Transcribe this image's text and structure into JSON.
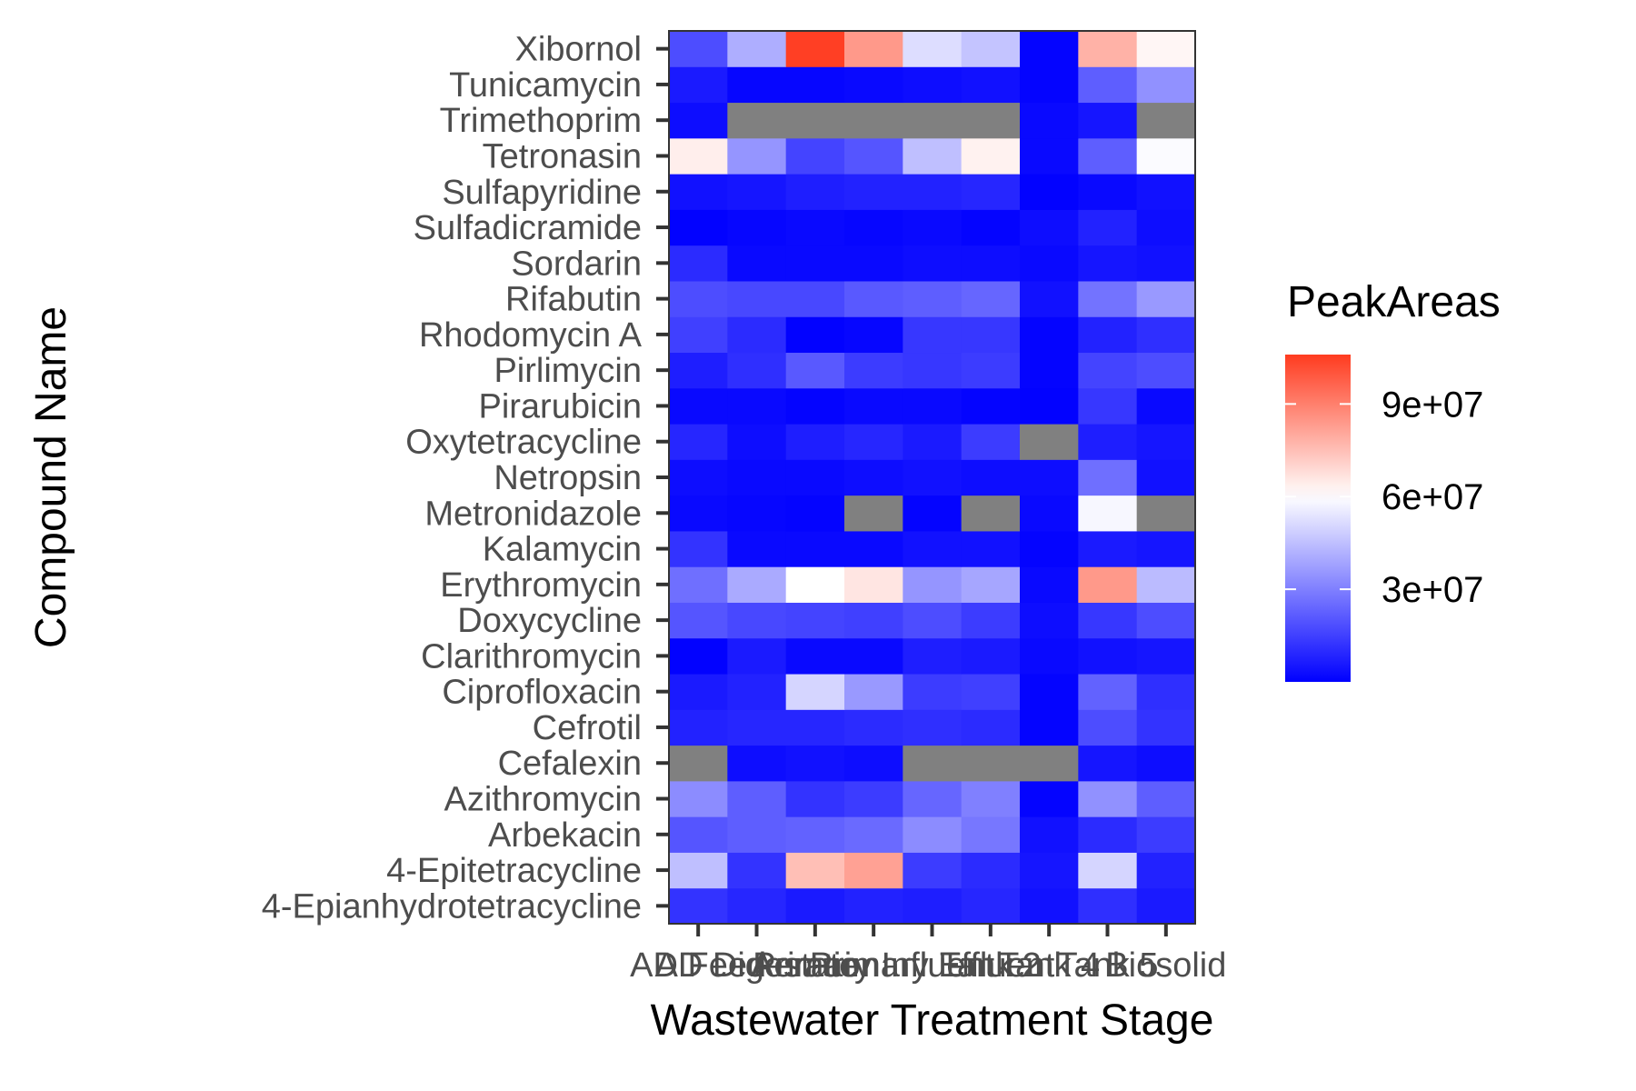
{
  "chart_data": {
    "type": "heatmap",
    "xlabel": "Wastewater Treatment Stage",
    "ylabel": "Compound Name",
    "x_categories": [
      "AD Feed",
      "AD Digestate",
      "Aeration",
      "Primary Influent",
      "Primary Effluent",
      "Tank 2",
      "Tank 4",
      "Tank 5",
      "Biosolid"
    ],
    "y_categories": [
      "4-Epianhydrotetracycline",
      "4-Epitetracycline",
      "Arbekacin",
      "Azithromycin",
      "Cefalexin",
      "Cefrotil",
      "Ciprofloxacin",
      "Clarithromycin",
      "Doxycycline",
      "Erythromycin",
      "Kalamycin",
      "Metronidazole",
      "Netropsin",
      "Oxytetracycline",
      "Pirarubicin",
      "Pirlimycin",
      "Rhodomycin A",
      "Rifabutin",
      "Sordarin",
      "Sulfadicramide",
      "Sulfapyridine",
      "Tetronasin",
      "Trimethoprim",
      "Tunicamycin",
      "Xibornol"
    ],
    "values": [
      [
        12000000,
        9000000,
        6000000,
        8000000,
        7000000,
        9000000,
        4000000,
        11000000,
        6000000
      ],
      [
        45000000,
        12000000,
        75000000,
        82000000,
        14000000,
        10000000,
        5000000,
        50000000,
        8000000
      ],
      [
        20000000,
        22000000,
        23000000,
        25000000,
        33000000,
        28000000,
        4000000,
        10000000,
        14000000
      ],
      [
        33000000,
        22000000,
        12000000,
        14000000,
        24000000,
        30000000,
        1000000,
        34000000,
        22000000
      ],
      [
        null,
        3000000,
        4000000,
        3000000,
        null,
        null,
        null,
        5000000,
        3000000
      ],
      [
        8000000,
        9000000,
        9000000,
        10000000,
        11000000,
        10000000,
        1000000,
        18000000,
        12000000
      ],
      [
        6000000,
        8000000,
        50000000,
        36000000,
        14000000,
        15000000,
        1000000,
        23000000,
        11000000
      ],
      [
        500000,
        6000000,
        2000000,
        2000000,
        7000000,
        6000000,
        2000000,
        4000000,
        5000000
      ],
      [
        20000000,
        17000000,
        16000000,
        15000000,
        18000000,
        14000000,
        3000000,
        13000000,
        18000000
      ],
      [
        26000000,
        40000000,
        60000000,
        66000000,
        35000000,
        39000000,
        2000000,
        84000000,
        44000000
      ],
      [
        12000000,
        2000000,
        2000000,
        2000000,
        4000000,
        4000000,
        1000000,
        6000000,
        5000000
      ],
      [
        2000000,
        1500000,
        1000000,
        null,
        1000000,
        null,
        2000000,
        58000000,
        null
      ],
      [
        3000000,
        2000000,
        2000000,
        3000000,
        4000000,
        3000000,
        3000000,
        26000000,
        4000000
      ],
      [
        9000000,
        3000000,
        7000000,
        9000000,
        6000000,
        14000000,
        null,
        7000000,
        5000000
      ],
      [
        2000000,
        2000000,
        1000000,
        2000000,
        2000000,
        1000000,
        500000,
        13000000,
        2000000
      ],
      [
        7000000,
        11000000,
        21000000,
        14000000,
        13000000,
        14000000,
        1000000,
        16000000,
        18000000
      ],
      [
        15000000,
        10000000,
        500000,
        1500000,
        13000000,
        13000000,
        1000000,
        8000000,
        11000000
      ],
      [
        18000000,
        17000000,
        17000000,
        21000000,
        22000000,
        24000000,
        4000000,
        27000000,
        36000000
      ],
      [
        10000000,
        2000000,
        2000000,
        2000000,
        3000000,
        3000000,
        2000000,
        5000000,
        4000000
      ],
      [
        500000,
        1500000,
        2000000,
        1500000,
        2000000,
        1000000,
        3000000,
        8000000,
        3000000
      ],
      [
        4000000,
        5000000,
        7000000,
        8000000,
        8000000,
        9000000,
        500000,
        2000000,
        4000000
      ],
      [
        64000000,
        35000000,
        16000000,
        20000000,
        45000000,
        63000000,
        2000000,
        22000000,
        59000000
      ],
      [
        3000000,
        null,
        null,
        null,
        null,
        null,
        2000000,
        5000000,
        null
      ],
      [
        6000000,
        1500000,
        1500000,
        2000000,
        3000000,
        4000000,
        1000000,
        22000000,
        34000000
      ],
      [
        18000000,
        41000000,
        105000000,
        84000000,
        52000000,
        46000000,
        1000000,
        78000000,
        62000000
      ]
    ],
    "legend": {
      "title": "PeakAreas",
      "ticks": [
        30000000,
        60000000,
        90000000
      ],
      "tick_labels": [
        "3e+07",
        "6e+07",
        "9e+07"
      ],
      "range": [
        0,
        106000000
      ],
      "midpoint": 60000000,
      "low_color": "#0000FF",
      "mid_color": "#FFFFFF",
      "high_color": "#FF3B1F",
      "na_color": "#808080",
      "position": "right"
    },
    "grid": false
  }
}
